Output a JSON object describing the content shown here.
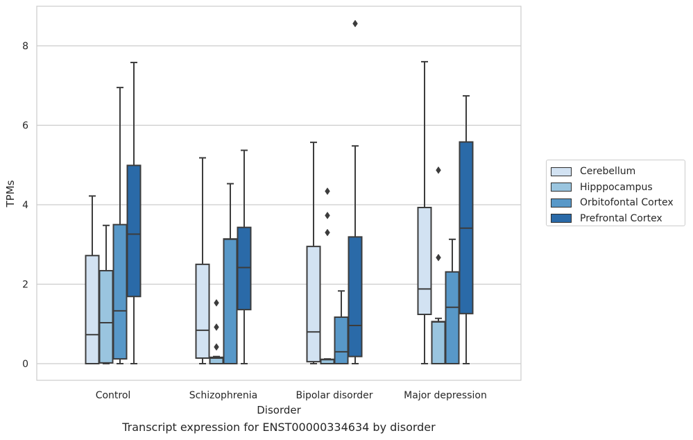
{
  "caption": "Transcript expression for ENST00000334634 by disorder",
  "chart_data": {
    "type": "boxplot",
    "xlabel": "Disorder",
    "ylabel": "TPMs",
    "ylim": [
      -0.42,
      9.0
    ],
    "yticks": [
      0,
      2,
      4,
      6,
      8
    ],
    "grid": true,
    "legend_placement": "right",
    "categories": [
      "Control",
      "Schizophrenia",
      "Bipolar disorder",
      "Major depression"
    ],
    "series": [
      {
        "name": "Cerebellum",
        "color": "#d2e2f2",
        "boxes": [
          {
            "whislo": 0,
            "q1": 0,
            "med": 0.73,
            "q3": 2.72,
            "whishi": 4.22,
            "fliers": []
          },
          {
            "whislo": 0,
            "q1": 0.14,
            "med": 0.84,
            "q3": 2.5,
            "whishi": 5.18,
            "fliers": []
          },
          {
            "whislo": 0,
            "q1": 0.05,
            "med": 0.8,
            "q3": 2.95,
            "whishi": 5.57,
            "fliers": []
          },
          {
            "whislo": 0,
            "q1": 1.24,
            "med": 1.88,
            "q3": 3.93,
            "whishi": 7.6,
            "fliers": []
          }
        ]
      },
      {
        "name": "Hipppocampus",
        "color": "#9ac5df",
        "boxes": [
          {
            "whislo": 0,
            "q1": 0.02,
            "med": 1.03,
            "q3": 2.34,
            "whishi": 3.48,
            "fliers": []
          },
          {
            "whislo": 0,
            "q1": 0,
            "med": 0.14,
            "q3": 0.16,
            "whishi": 0.18,
            "fliers": [
              0.42,
              0.92,
              1.53
            ]
          },
          {
            "whislo": 0,
            "q1": 0,
            "med": 0.1,
            "q3": 0.11,
            "whishi": 0.12,
            "fliers": [
              3.3,
              3.73,
              4.34
            ]
          },
          {
            "whislo": 0,
            "q1": 0,
            "med": 1.05,
            "q3": 1.06,
            "whishi": 1.14,
            "fliers": [
              2.67,
              4.87
            ]
          }
        ]
      },
      {
        "name": "Orbitofontal Cortex",
        "color": "#5898c8",
        "boxes": [
          {
            "whislo": 0,
            "q1": 0.12,
            "med": 1.33,
            "q3": 3.5,
            "whishi": 6.95,
            "fliers": []
          },
          {
            "whislo": 0,
            "q1": 0,
            "med": 3.13,
            "q3": 3.14,
            "whishi": 4.53,
            "fliers": []
          },
          {
            "whislo": 0,
            "q1": 0.0,
            "med": 0.3,
            "q3": 1.17,
            "whishi": 1.83,
            "fliers": []
          },
          {
            "whislo": 0,
            "q1": 0,
            "med": 1.42,
            "q3": 2.31,
            "whishi": 3.13,
            "fliers": []
          }
        ]
      },
      {
        "name": "Prefrontal Cortex",
        "color": "#2a6aa8",
        "boxes": [
          {
            "whislo": 0,
            "q1": 1.69,
            "med": 3.26,
            "q3": 4.99,
            "whishi": 7.58,
            "fliers": []
          },
          {
            "whislo": 0,
            "q1": 1.36,
            "med": 2.42,
            "q3": 3.43,
            "whishi": 5.37,
            "fliers": []
          },
          {
            "whislo": 0,
            "q1": 0.18,
            "med": 0.96,
            "q3": 3.19,
            "whishi": 5.48,
            "fliers": [
              8.56
            ]
          },
          {
            "whislo": 0,
            "q1": 1.26,
            "med": 3.41,
            "q3": 5.58,
            "whishi": 6.74,
            "fliers": []
          }
        ]
      }
    ]
  }
}
